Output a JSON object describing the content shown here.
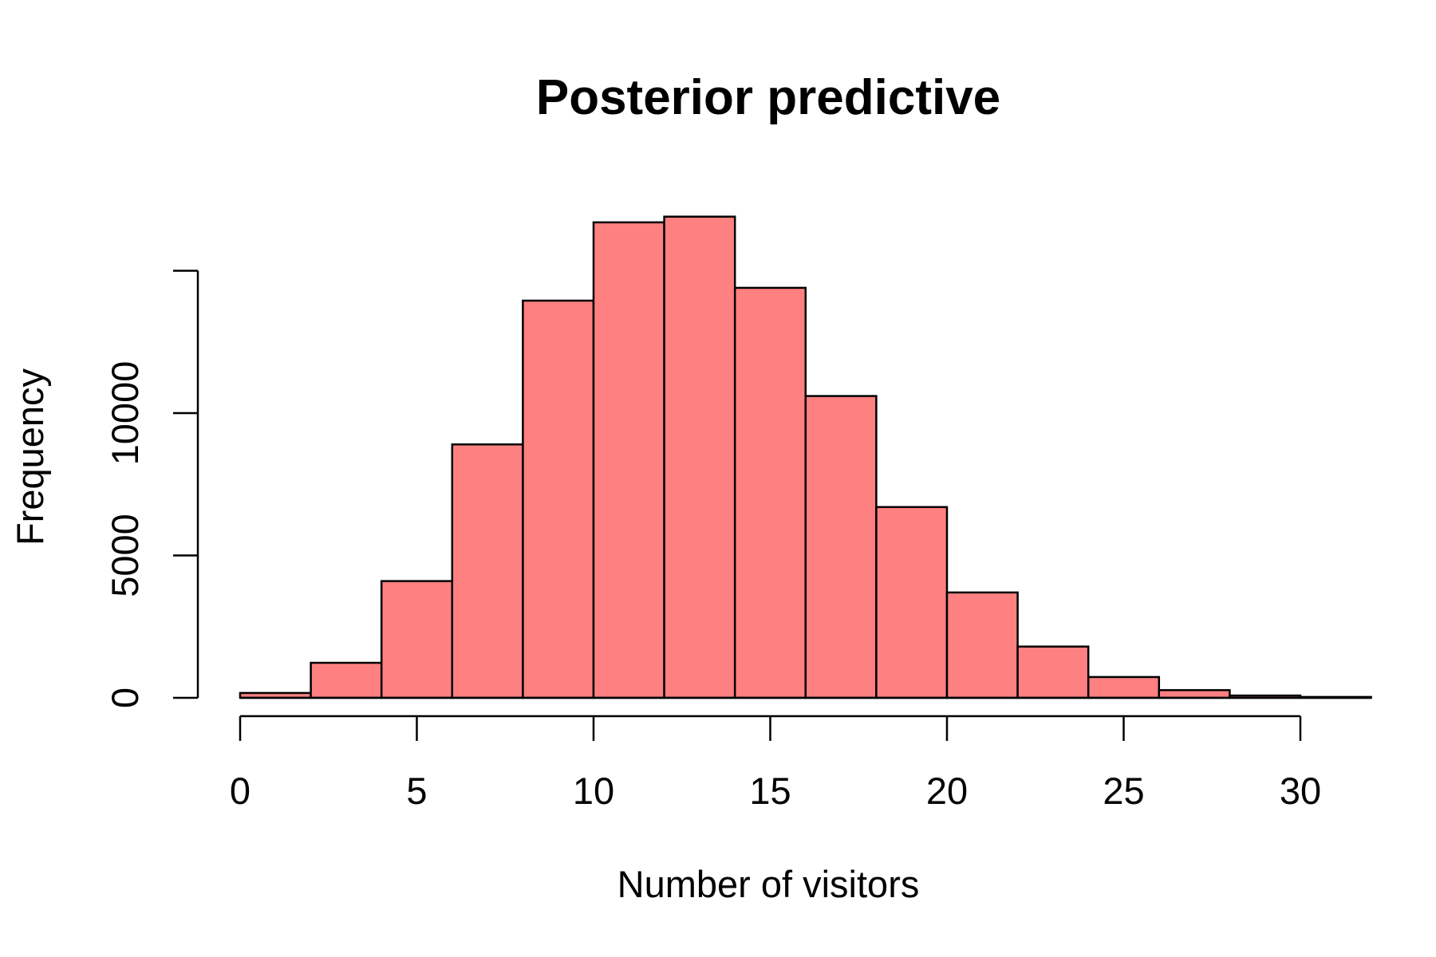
{
  "chart_data": {
    "type": "bar",
    "title": "Posterior predictive",
    "xlabel": "Number of visitors",
    "ylabel": "Frequency",
    "bin_edges": [
      0,
      2,
      4,
      6,
      8,
      10,
      12,
      14,
      16,
      18,
      20,
      22,
      24,
      26,
      28,
      30,
      32
    ],
    "values": [
      170,
      1230,
      4100,
      8900,
      13950,
      16700,
      16900,
      14400,
      10600,
      6700,
      3700,
      1800,
      730,
      270,
      80,
      30
    ],
    "xlim": [
      0,
      31.2
    ],
    "ylim": [
      0,
      17000
    ],
    "x_ticks": [
      0,
      5,
      10,
      15,
      20,
      25,
      30
    ],
    "x_tick_labels": [
      "0",
      "5",
      "10",
      "15",
      "20",
      "25",
      "30"
    ],
    "y_ticks": [
      0,
      5000,
      10000,
      15000
    ],
    "y_tick_labels": [
      "0",
      "5000",
      "10000",
      ""
    ],
    "bar_color": "#FF8080",
    "grid": false,
    "legend": "none"
  }
}
